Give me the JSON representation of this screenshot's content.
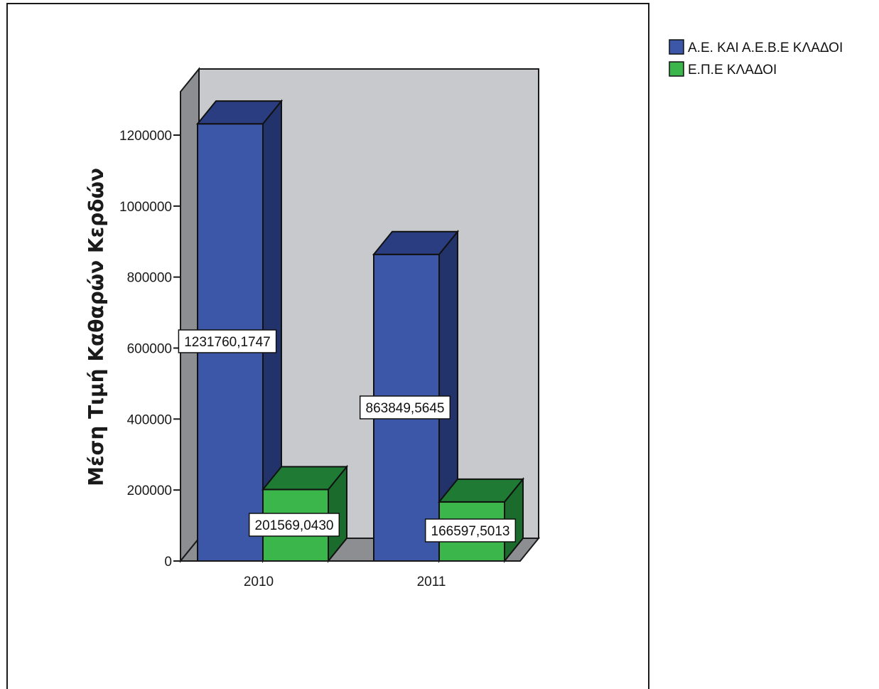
{
  "chart_data": {
    "type": "bar",
    "three_d": true,
    "categories": [
      "2010",
      "2011"
    ],
    "series": [
      {
        "name": "Α.Ε. ΚΑΙ Α.Ε.Β.Ε ΚΛΑΔΟΙ",
        "values": [
          1231760.1747,
          863849.5645
        ],
        "labels": [
          "1231760,1747",
          "863849,5645"
        ],
        "color": "#3d57a8",
        "side_color": "#22326a",
        "top_color": "#2a3d80"
      },
      {
        "name": "Ε.Π.Ε ΚΛΑΔΟΙ",
        "values": [
          201569.043,
          166597.5013
        ],
        "labels": [
          "201569,0430",
          "166597,5013"
        ],
        "color": "#3bb64a",
        "side_color": "#1b6b2c",
        "top_color": "#1f7a33"
      }
    ],
    "title": "",
    "xlabel": "",
    "ylabel": "Μέση Τιμή Καθαρών Κερδών",
    "ylim": [
      0,
      1300000
    ],
    "yticks": [
      0,
      200000,
      400000,
      600000,
      800000,
      1000000,
      1200000
    ],
    "ytick_labels": [
      "0",
      "200000",
      "400000",
      "600000",
      "800000",
      "1000000",
      "1200000"
    ],
    "legend_position": "top-right",
    "colors": {
      "back_wall": "#c8c9cc",
      "side_wall": "#8d8e91",
      "floor": "#8d8e91",
      "frame": "#1a1a1a"
    }
  }
}
